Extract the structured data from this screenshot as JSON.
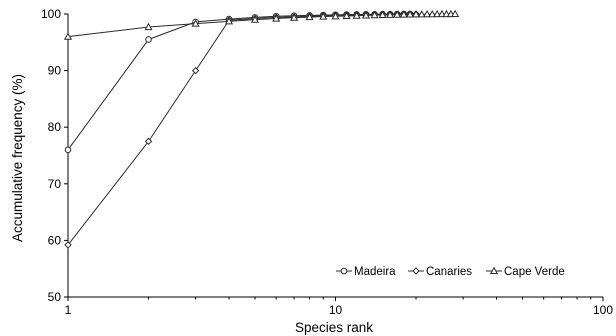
{
  "chart_data": {
    "type": "line",
    "xlabel": "Species rank",
    "ylabel": "Accumulative frequency (%)",
    "x_scale": "log",
    "xlim": [
      1,
      100
    ],
    "ylim": [
      50,
      100
    ],
    "x_ticks": [
      1,
      10,
      100
    ],
    "y_ticks": [
      50,
      60,
      70,
      80,
      90,
      100
    ],
    "grid": false,
    "legend_position": "bottom-right",
    "colors": {
      "line": "#2b2b2b",
      "axis": "#000000",
      "marker_fill": "#ffffff"
    },
    "series": [
      {
        "name": "Madeira",
        "marker": "circle",
        "x": [
          1,
          2,
          3,
          4,
          5,
          6,
          7,
          8,
          9,
          10,
          11,
          12,
          13,
          14,
          15,
          16,
          17,
          18,
          19
        ],
        "y": [
          76.0,
          95.5,
          98.6,
          99.1,
          99.4,
          99.6,
          99.7,
          99.75,
          99.8,
          99.85,
          99.9,
          99.92,
          99.94,
          99.95,
          99.96,
          99.97,
          99.98,
          99.99,
          100.0
        ]
      },
      {
        "name": "Canaries",
        "marker": "diamond",
        "x": [
          1,
          2,
          3,
          4,
          5,
          6,
          7,
          8,
          9,
          10,
          11,
          12,
          13,
          14,
          15,
          16,
          17,
          18,
          19,
          20
        ],
        "y": [
          59.2,
          77.5,
          90.0,
          98.9,
          99.2,
          99.4,
          99.5,
          99.6,
          99.7,
          99.75,
          99.8,
          99.85,
          99.9,
          99.92,
          99.94,
          99.95,
          99.96,
          99.97,
          99.98,
          100.0
        ]
      },
      {
        "name": "Cape Verde",
        "marker": "triangle",
        "x": [
          1,
          2,
          3,
          4,
          5,
          6,
          7,
          8,
          9,
          10,
          11,
          12,
          13,
          14,
          15,
          16,
          17,
          18,
          19,
          20,
          21,
          22,
          23,
          24,
          25,
          26,
          27,
          28
        ],
        "y": [
          96.0,
          97.7,
          98.3,
          98.7,
          99.0,
          99.2,
          99.35,
          99.45,
          99.55,
          99.6,
          99.65,
          99.7,
          99.75,
          99.8,
          99.83,
          99.86,
          99.88,
          99.9,
          99.92,
          99.94,
          99.95,
          99.96,
          99.97,
          99.98,
          99.98,
          99.99,
          99.99,
          100.0
        ]
      }
    ]
  }
}
